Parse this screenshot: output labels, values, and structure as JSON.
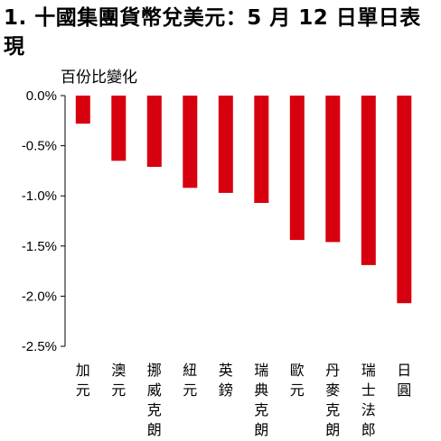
{
  "title": "1. 十國集團貨幣兌美元：5 月 12 日單日表現",
  "ylabel": "百份比變化",
  "chart_data": {
    "type": "bar",
    "title": "1. 十國集團貨幣兌美元：5 月 12 日單日表現",
    "ylabel": "百份比變化",
    "xlabel": "",
    "categories": [
      "加元",
      "澳元",
      "挪威克朗",
      "紐元",
      "英鎊",
      "瑞典克朗",
      "歐元",
      "丹麥克朗",
      "瑞士法郎",
      "日圓"
    ],
    "values": [
      -0.28,
      -0.65,
      -0.71,
      -0.92,
      -0.97,
      -1.07,
      -1.44,
      -1.46,
      -1.69,
      -2.07
    ],
    "ylim": [
      -2.5,
      0.0
    ],
    "yticks": [
      0.0,
      -0.5,
      -1.0,
      -1.5,
      -2.0,
      -2.5
    ],
    "ytick_labels": [
      "0.0%",
      "-0.5%",
      "-1.0%",
      "-1.5%",
      "-2.0%",
      "-2.5%"
    ],
    "grid": false,
    "bar_color": "#d7000f"
  }
}
